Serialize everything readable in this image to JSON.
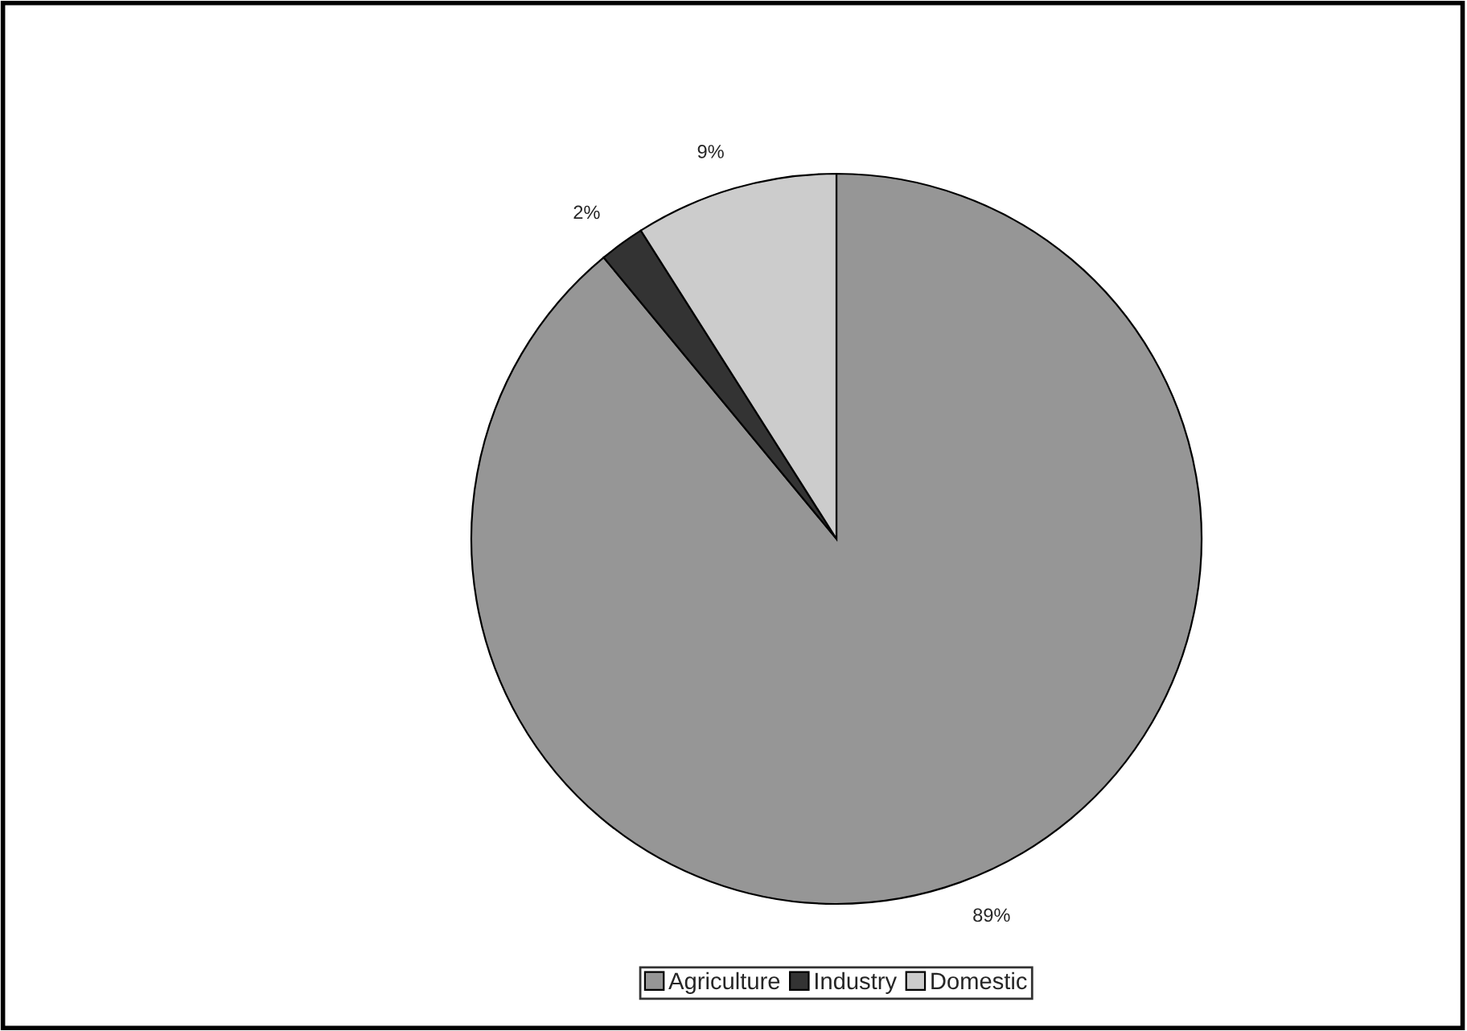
{
  "chart_data": {
    "type": "pie",
    "categories": [
      "Agriculture",
      "Industry",
      "Domestic"
    ],
    "values": [
      89,
      2,
      9
    ],
    "colors": [
      "#969696",
      "#333333",
      "#cccccc"
    ],
    "value_labels": [
      "89%",
      "2%",
      "9%"
    ],
    "legend": "bottom"
  }
}
